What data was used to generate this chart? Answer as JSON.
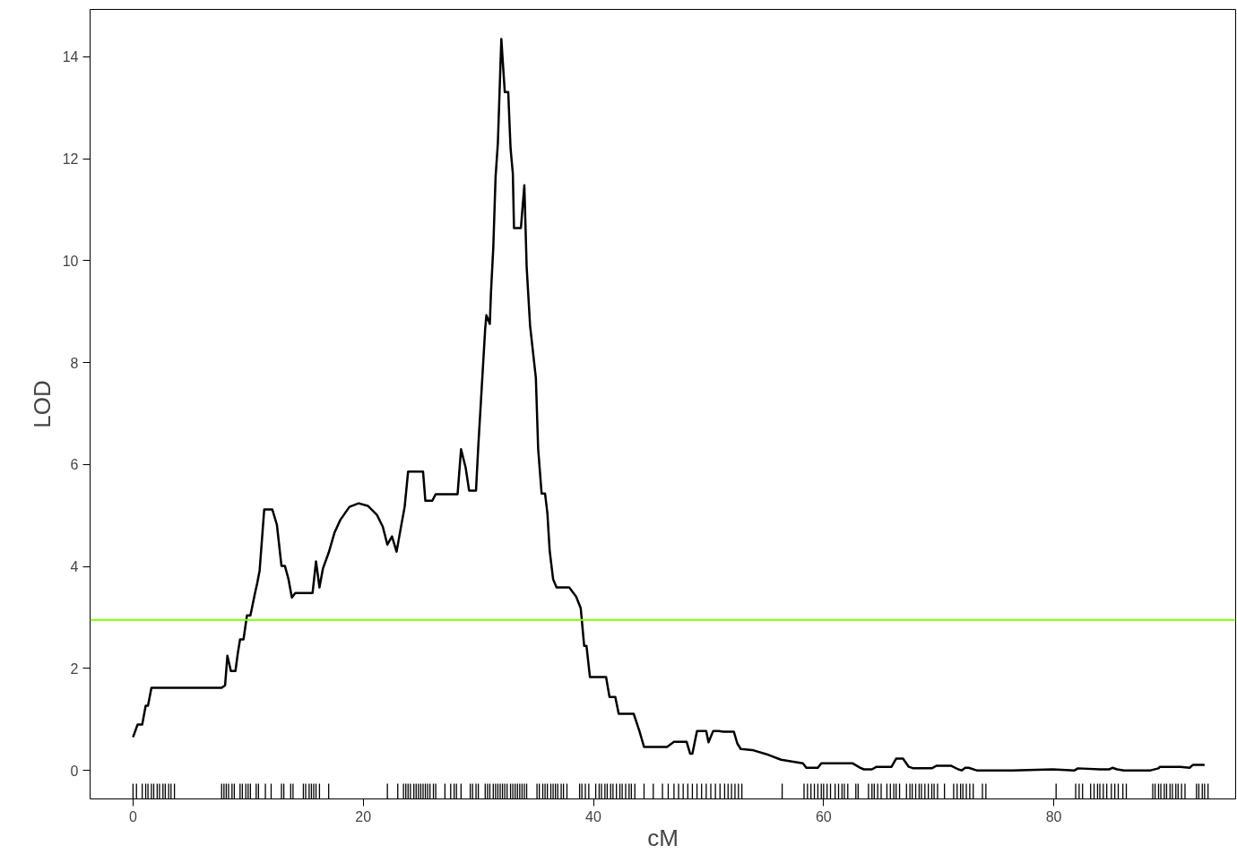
{
  "chart_data": {
    "type": "line",
    "xlabel": "cM",
    "ylabel": "LOD",
    "xlim": [
      -3.73,
      95.8
    ],
    "ylim": [
      -0.56,
      14.93
    ],
    "xticks": [
      0,
      20,
      40,
      60,
      80
    ],
    "yticks": [
      0,
      2,
      4,
      6,
      8,
      10,
      12,
      14
    ],
    "grid": false,
    "series": [
      {
        "color": "#000000",
        "x": [
          0,
          0.4,
          0.8,
          1.1,
          1.3,
          1.6,
          7.7,
          8.0,
          8.2,
          8.5,
          8.9,
          9.1,
          9.3,
          9.6,
          9.9,
          10.2,
          10.6,
          10.8,
          11.0,
          11.4,
          12.1,
          12.5,
          12.9,
          13.2,
          13.5,
          13.8,
          14.1,
          15.6,
          15.9,
          16.2,
          16.5,
          17.0,
          17.5,
          18.0,
          18.8,
          19.6,
          20.4,
          21.2,
          21.7,
          22.1,
          22.5,
          22.9,
          23.3,
          23.6,
          23.9,
          25.2,
          25.4,
          26.0,
          26.3,
          28.2,
          28.5,
          28.9,
          29.2,
          29.8,
          30.0,
          30.6,
          30.7,
          31.0,
          31.1,
          31.3,
          31.5,
          31.7,
          32.0,
          32.3,
          32.6,
          32.8,
          33.0,
          33.1,
          33.7,
          34.0,
          34.2,
          34.5,
          35.0,
          35.2,
          35.5,
          35.8,
          36.0,
          36.2,
          36.5,
          36.8,
          37.9,
          38.5,
          38.9,
          39.2,
          39.4,
          39.7,
          41.1,
          41.4,
          41.9,
          42.2,
          43.5,
          44.0,
          44.4,
          46.4,
          47.0,
          48.1,
          48.4,
          48.6,
          49.0,
          49.8,
          50.0,
          50.4,
          50.9,
          51.3,
          52.2,
          52.5,
          52.8,
          53.8,
          55.0,
          56.3,
          58.2,
          58.5,
          59.5,
          59.8,
          62.5,
          63.2,
          63.5,
          64.2,
          64.6,
          65.9,
          66.3,
          66.9,
          67.4,
          67.8,
          69.4,
          69.8,
          71.1,
          71.7,
          72.0,
          72.3,
          72.6,
          73.3,
          76.4,
          79.9,
          81.8,
          82.1,
          84.0,
          84.8,
          85.1,
          85.5,
          86.1,
          88.4,
          89.1,
          89.2,
          91.0,
          91.8,
          92.1,
          93.1
        ],
        "values": [
          0.65,
          0.9,
          0.9,
          1.27,
          1.27,
          1.62,
          1.62,
          1.67,
          2.25,
          1.95,
          1.95,
          2.29,
          2.57,
          2.57,
          3.04,
          3.04,
          3.48,
          3.68,
          3.92,
          5.12,
          5.12,
          4.82,
          4.01,
          4.01,
          3.76,
          3.39,
          3.48,
          3.48,
          4.1,
          3.59,
          3.96,
          4.27,
          4.66,
          4.91,
          5.17,
          5.24,
          5.19,
          5.01,
          4.78,
          4.43,
          4.59,
          4.29,
          4.8,
          5.17,
          5.86,
          5.86,
          5.29,
          5.29,
          5.42,
          5.42,
          6.3,
          5.94,
          5.49,
          5.49,
          6.37,
          8.67,
          8.93,
          8.76,
          9.37,
          10.25,
          11.64,
          12.31,
          14.35,
          13.31,
          13.31,
          12.21,
          11.71,
          10.64,
          10.64,
          11.48,
          9.88,
          8.72,
          7.7,
          6.31,
          5.43,
          5.43,
          5.05,
          4.31,
          3.75,
          3.59,
          3.59,
          3.41,
          3.18,
          2.44,
          2.44,
          1.83,
          1.83,
          1.44,
          1.44,
          1.11,
          1.11,
          0.77,
          0.46,
          0.46,
          0.56,
          0.56,
          0.33,
          0.33,
          0.77,
          0.77,
          0.55,
          0.77,
          0.77,
          0.76,
          0.76,
          0.53,
          0.42,
          0.4,
          0.32,
          0.21,
          0.14,
          0.05,
          0.05,
          0.14,
          0.14,
          0.05,
          0.02,
          0.02,
          0.07,
          0.07,
          0.23,
          0.23,
          0.07,
          0.04,
          0.04,
          0.09,
          0.09,
          0.02,
          0.0,
          0.05,
          0.05,
          0.0,
          0.0,
          0.02,
          0.0,
          0.04,
          0.02,
          0.02,
          0.05,
          0.02,
          0.0,
          0.0,
          0.04,
          0.07,
          0.07,
          0.05,
          0.11,
          0.11
        ]
      },
      {
        "type": "bar",
        "color": "#000000",
        "base": [
          -0.56,
          -0.56,
          -0.56,
          -0.56,
          -0.56,
          -0.56,
          -0.56,
          -0.56,
          -0.56,
          -0.56,
          -0.56,
          -0.56,
          -0.56,
          -0.56,
          -0.56,
          -0.56,
          -0.56,
          -0.56,
          -0.56,
          -0.56,
          -0.56,
          -0.56,
          -0.56,
          -0.56,
          -0.56,
          -0.56,
          -0.56,
          -0.56,
          -0.56,
          -0.56,
          -0.56,
          -0.56,
          -0.56,
          -0.56,
          -0.56,
          -0.56,
          -0.56,
          -0.56,
          -0.56,
          -0.56,
          -0.56,
          -0.56,
          -0.56,
          -0.56,
          -0.56,
          -0.56,
          -0.56,
          -0.56,
          -0.56,
          -0.56,
          -0.56,
          -0.56,
          -0.56,
          -0.56,
          -0.56,
          -0.56,
          -0.56,
          -0.56,
          -0.56,
          -0.56,
          -0.56,
          -0.56,
          -0.56,
          -0.56,
          -0.56,
          -0.56,
          -0.56,
          -0.56,
          -0.56,
          -0.56,
          -0.56,
          -0.56,
          -0.56,
          -0.56,
          -0.56,
          -0.56,
          -0.56,
          -0.56,
          -0.56,
          -0.56,
          -0.56,
          -0.56,
          -0.56,
          -0.56,
          -0.56,
          -0.56,
          -0.56,
          -0.56,
          -0.56,
          -0.56,
          -0.56,
          -0.56,
          -0.56,
          -0.56,
          -0.56,
          -0.56,
          -0.56,
          -0.56,
          -0.56,
          -0.56,
          -0.56,
          -0.56,
          -0.56,
          -0.56,
          -0.56,
          -0.56,
          -0.56,
          -0.56,
          -0.56,
          -0.56,
          -0.56,
          -0.56,
          -0.56,
          -0.56,
          -0.56,
          -0.56,
          -0.56,
          -0.56,
          -0.56,
          -0.56,
          -0.56,
          -0.56,
          -0.56,
          -0.56,
          -0.56,
          -0.56,
          -0.56,
          -0.56,
          -0.56,
          -0.56,
          -0.56,
          -0.56,
          -0.56,
          -0.56,
          -0.56,
          -0.56,
          -0.56,
          -0.56,
          -0.56,
          -0.56,
          -0.56,
          -0.56,
          -0.56,
          -0.56,
          -0.56,
          -0.56,
          -0.56,
          -0.56,
          -0.56,
          -0.56,
          -0.56,
          -0.56,
          -0.56,
          -0.56,
          -0.56,
          -0.56,
          -0.56,
          -0.56,
          -0.56,
          -0.56,
          -0.56,
          -0.56,
          -0.56,
          -0.56,
          -0.56,
          -0.56,
          -0.56,
          -0.56,
          -0.56,
          -0.56,
          -0.56,
          -0.56,
          -0.56,
          -0.56,
          -0.56,
          -0.56,
          -0.56,
          -0.56,
          -0.56,
          -0.56,
          -0.56,
          -0.56,
          -0.56,
          -0.56,
          -0.56,
          -0.56,
          -0.56,
          -0.56,
          -0.56,
          -0.56,
          -0.56,
          -0.56,
          -0.56,
          -0.56,
          -0.56,
          -0.56,
          -0.56,
          -0.56,
          -0.56,
          -0.56,
          -0.56,
          -0.56,
          -0.56,
          -0.56,
          -0.56,
          -0.56,
          -0.56,
          -0.56,
          -0.56,
          -0.56,
          -0.56,
          -0.56,
          -0.56,
          -0.56,
          -0.56
        ],
        "x": [
          0,
          0.3,
          0.8,
          1.1,
          1.3,
          1.6,
          1.8,
          2.1,
          2.3,
          2.6,
          2.8,
          3.1,
          3.3,
          3.6,
          7.7,
          7.9,
          8.1,
          8.3,
          8.6,
          8.8,
          9.3,
          9.5,
          9.8,
          10.0,
          10.2,
          10.7,
          10.9,
          11.5,
          12.0,
          12.9,
          13.1,
          13.7,
          13.9,
          14.8,
          15.0,
          15.3,
          15.5,
          15.7,
          15.9,
          16.2,
          17.0,
          22.1,
          23.0,
          23.5,
          23.7,
          23.9,
          24.1,
          24.4,
          24.6,
          24.8,
          25.0,
          25.2,
          25.4,
          25.6,
          25.8,
          26.1,
          26.3,
          27.1,
          27.6,
          27.9,
          28.1,
          28.5,
          29.3,
          29.5,
          29.8,
          30.0,
          30.6,
          30.8,
          31.0,
          31.3,
          31.5,
          31.7,
          31.9,
          32.1,
          32.3,
          32.5,
          32.8,
          33.0,
          33.2,
          33.4,
          33.6,
          33.8,
          34.0,
          34.2,
          35.1,
          35.3,
          35.6,
          35.8,
          36.0,
          36.3,
          36.5,
          36.7,
          36.9,
          37.2,
          37.4,
          37.7,
          38.8,
          39.0,
          39.3,
          39.6,
          40.2,
          40.5,
          40.7,
          41.0,
          41.2,
          41.5,
          41.7,
          42.0,
          42.3,
          42.5,
          42.8,
          43.1,
          43.3,
          43.6,
          44.4,
          45.2,
          46.0,
          46.5,
          47.0,
          47.4,
          47.8,
          48.2,
          48.6,
          49.0,
          49.4,
          49.8,
          50.2,
          50.6,
          51.0,
          51.4,
          51.7,
          52.0,
          52.3,
          52.6,
          52.9,
          56.4,
          58.3,
          58.6,
          58.9,
          59.2,
          59.5,
          59.8,
          60.0,
          60.3,
          60.6,
          61.0,
          61.3,
          61.6,
          61.8,
          62.1,
          62.8,
          63.0,
          63.9,
          64.2,
          64.4,
          64.7,
          65.0,
          65.5,
          65.8,
          66.1,
          66.3,
          66.6,
          67.2,
          67.5,
          67.7,
          68.0,
          68.3,
          68.5,
          68.8,
          69.1,
          69.4,
          69.6,
          69.9,
          70.5,
          71.3,
          71.6,
          71.9,
          72.1,
          72.4,
          72.7,
          73.0,
          73.8,
          74.1,
          80.2,
          81.9,
          82.2,
          82.5,
          83.2,
          83.5,
          83.8,
          84.0,
          84.3,
          84.6,
          85.0,
          85.3,
          85.6,
          86.0,
          86.3,
          88.6,
          88.8,
          89.1,
          89.3,
          89.6,
          89.8,
          90.1,
          90.3,
          90.6,
          90.8,
          91.1,
          91.4,
          92.4,
          92.6,
          92.9,
          93.1,
          93.4
        ],
        "values": [
          0.3,
          0.3,
          0.3,
          0.3,
          0.3,
          0.3,
          0.3,
          0.3,
          0.3,
          0.3,
          0.3,
          0.3,
          0.3,
          0.3,
          0.3,
          0.3,
          0.3,
          0.3,
          0.3,
          0.3,
          0.3,
          0.3,
          0.3,
          0.3,
          0.3,
          0.3,
          0.3,
          0.3,
          0.3,
          0.3,
          0.3,
          0.3,
          0.3,
          0.3,
          0.3,
          0.3,
          0.3,
          0.3,
          0.3,
          0.3,
          0.3,
          0.3,
          0.3,
          0.3,
          0.3,
          0.3,
          0.3,
          0.3,
          0.3,
          0.3,
          0.3,
          0.3,
          0.3,
          0.3,
          0.3,
          0.3,
          0.3,
          0.3,
          0.3,
          0.3,
          0.3,
          0.3,
          0.3,
          0.3,
          0.3,
          0.3,
          0.3,
          0.3,
          0.3,
          0.3,
          0.3,
          0.3,
          0.3,
          0.3,
          0.3,
          0.3,
          0.3,
          0.3,
          0.3,
          0.3,
          0.3,
          0.3,
          0.3,
          0.3,
          0.3,
          0.3,
          0.3,
          0.3,
          0.3,
          0.3,
          0.3,
          0.3,
          0.3,
          0.3,
          0.3,
          0.3,
          0.3,
          0.3,
          0.3,
          0.3,
          0.3,
          0.3,
          0.3,
          0.3,
          0.3,
          0.3,
          0.3,
          0.3,
          0.3,
          0.3,
          0.3,
          0.3,
          0.3,
          0.3,
          0.3,
          0.3,
          0.3,
          0.3,
          0.3,
          0.3,
          0.3,
          0.3,
          0.3,
          0.3,
          0.3,
          0.3,
          0.3,
          0.3,
          0.3,
          0.3,
          0.3,
          0.3,
          0.3,
          0.3,
          0.3,
          0.3,
          0.3,
          0.3,
          0.3,
          0.3,
          0.3,
          0.3,
          0.3,
          0.3,
          0.3,
          0.3,
          0.3,
          0.3,
          0.3,
          0.3,
          0.3,
          0.3,
          0.3,
          0.3,
          0.3,
          0.3,
          0.3,
          0.3,
          0.3,
          0.3,
          0.3,
          0.3,
          0.3,
          0.3,
          0.3,
          0.3,
          0.3,
          0.3,
          0.3,
          0.3,
          0.3,
          0.3,
          0.3,
          0.3,
          0.3,
          0.3,
          0.3,
          0.3,
          0.3,
          0.3,
          0.3,
          0.3,
          0.3,
          0.3,
          0.3,
          0.3,
          0.3,
          0.3,
          0.3,
          0.3,
          0.3,
          0.3,
          0.3,
          0.3,
          0.3,
          0.3,
          0.3,
          0.3,
          0.3,
          0.3,
          0.3,
          0.3,
          0.3,
          0.3,
          0.3,
          0.3,
          0.3,
          0.3,
          0.3,
          0.3,
          0.3,
          0.3,
          0.3,
          0.3,
          0.3
        ]
      }
    ],
    "ref_lines": [
      {
        "axis": "y",
        "value": 2.95,
        "color": "#7fff00"
      }
    ]
  }
}
